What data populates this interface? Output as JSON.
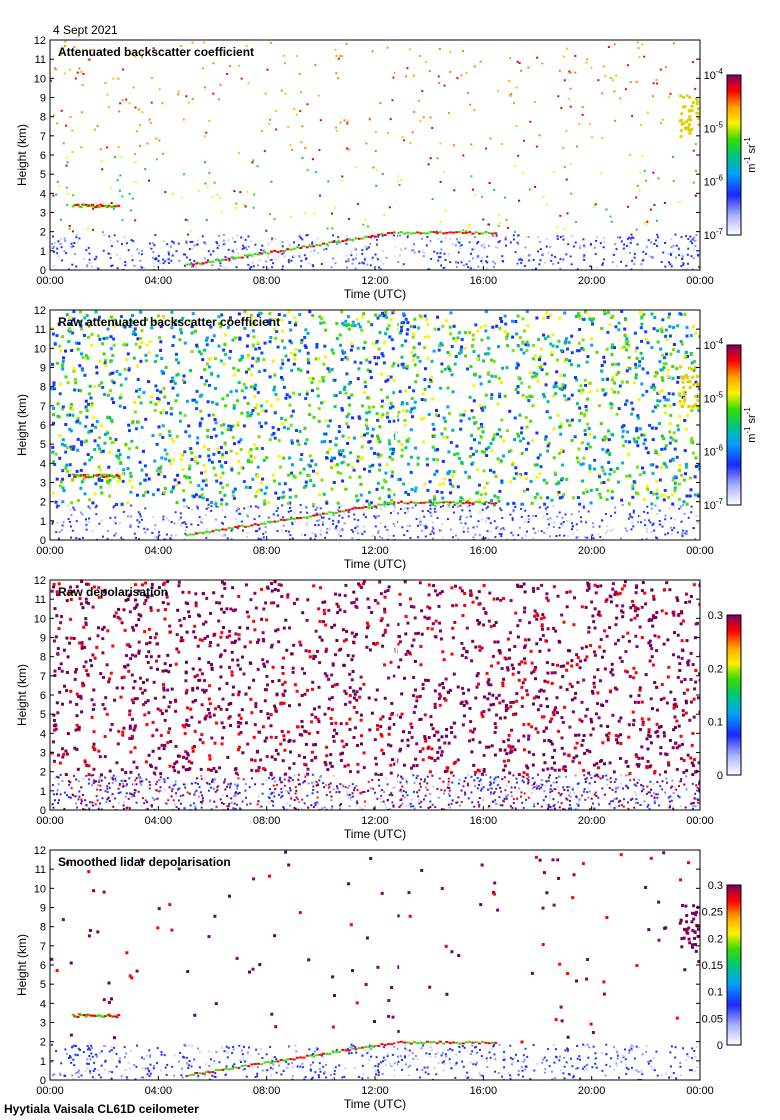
{
  "date_label": "4 Sept 2021",
  "footer": "Hyytiala Vaisala CL61D ceilometer",
  "chart_data": [
    {
      "type": "heatmap",
      "title": "Attenuated backscatter coefficient",
      "xlabel": "Time (UTC)",
      "ylabel": "Height (km)",
      "x_ticks": [
        "00:00",
        "04:00",
        "08:00",
        "12:00",
        "16:00",
        "20:00",
        "00:00"
      ],
      "y_ticks": [
        "0",
        "1",
        "2",
        "3",
        "4",
        "5",
        "6",
        "7",
        "8",
        "9",
        "10",
        "11",
        "12"
      ],
      "ylim": [
        0,
        12
      ],
      "colorbar": {
        "scale": "log",
        "ticks": [
          {
            "base": "10",
            "exp": "-4"
          },
          {
            "base": "10",
            "exp": "-5"
          },
          {
            "base": "10",
            "exp": "-6"
          },
          {
            "base": "10",
            "exp": "-7"
          }
        ],
        "unit": {
          "a": "m",
          "a_exp": "-1",
          "b": "sr",
          "b_exp": "-1"
        }
      },
      "scene": {
        "top_density": 0.18,
        "top_color": "warm",
        "base_layer": 1.9,
        "cloud_trail": true,
        "gap": true
      }
    },
    {
      "type": "heatmap",
      "title": "Raw attenuated backscatter coefficient",
      "xlabel": "Time (UTC)",
      "ylabel": "Height (km)",
      "x_ticks": [
        "00:00",
        "04:00",
        "08:00",
        "12:00",
        "16:00",
        "20:00",
        "00:00"
      ],
      "y_ticks": [
        "0",
        "1",
        "2",
        "3",
        "4",
        "5",
        "6",
        "7",
        "8",
        "9",
        "10",
        "11",
        "12"
      ],
      "ylim": [
        0,
        12
      ],
      "colorbar": {
        "scale": "log",
        "ticks": [
          {
            "base": "10",
            "exp": "-4"
          },
          {
            "base": "10",
            "exp": "-5"
          },
          {
            "base": "10",
            "exp": "-6"
          },
          {
            "base": "10",
            "exp": "-7"
          }
        ],
        "unit": {
          "a": "m",
          "a_exp": "-1",
          "b": "sr",
          "b_exp": "-1"
        }
      },
      "scene": {
        "top_density": 0.85,
        "top_color": "noise",
        "base_layer": 1.9,
        "cloud_trail": true,
        "gap": true
      }
    },
    {
      "type": "heatmap",
      "title": "Raw depolarisation",
      "xlabel": "Time (UTC)",
      "ylabel": "Height (km)",
      "x_ticks": [
        "00:00",
        "04:00",
        "08:00",
        "12:00",
        "16:00",
        "20:00",
        "00:00"
      ],
      "y_ticks": [
        "0",
        "1",
        "2",
        "3",
        "4",
        "5",
        "6",
        "7",
        "8",
        "9",
        "10",
        "11",
        "12"
      ],
      "ylim": [
        0,
        12
      ],
      "colorbar": {
        "scale": "linear",
        "ticks": [
          "0.3",
          "0.2",
          "0.1",
          "0"
        ],
        "range": [
          0,
          0.3
        ]
      },
      "scene": {
        "top_density": 0.7,
        "top_color": "purple",
        "base_layer": 1.9,
        "cloud_trail": false,
        "gap": true
      }
    },
    {
      "type": "heatmap",
      "title": "Smoothed lidar depolarisation",
      "xlabel": "Time (UTC)",
      "ylabel": "Height (km)",
      "x_ticks": [
        "00:00",
        "04:00",
        "08:00",
        "12:00",
        "16:00",
        "20:00",
        "00:00"
      ],
      "y_ticks": [
        "0",
        "1",
        "2",
        "3",
        "4",
        "5",
        "6",
        "7",
        "8",
        "9",
        "10",
        "11",
        "12"
      ],
      "ylim": [
        0,
        12
      ],
      "colorbar": {
        "scale": "linear",
        "ticks": [
          "0.3",
          "0.25",
          "0.2",
          "0.15",
          "0.1",
          "0.05",
          "0"
        ],
        "range": [
          0,
          0.3
        ]
      },
      "scene": {
        "top_density": 0.05,
        "top_color": "purple",
        "base_layer": 1.9,
        "cloud_trail": true,
        "gap": true
      }
    }
  ]
}
